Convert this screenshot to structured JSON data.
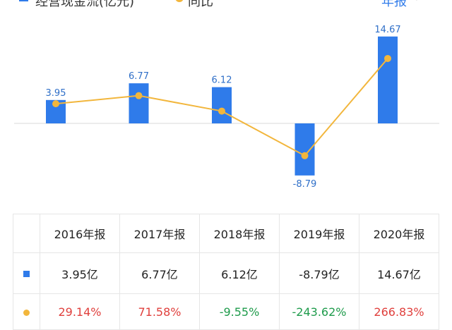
{
  "legend": {
    "bar_label": "经营现金流(亿元)",
    "line_label": "同比",
    "period": "年报",
    "chevron": "›"
  },
  "colors": {
    "bar": "#2f7bea",
    "line": "#f2b63c",
    "positive": "#e0403d",
    "negative": "#1e9b4b"
  },
  "chart_data": {
    "type": "bar",
    "categories": [
      "2016年报",
      "2017年报",
      "2018年报",
      "2019年报",
      "2020年报"
    ],
    "series": [
      {
        "name": "经营现金流(亿元)",
        "type": "bar",
        "values": [
          3.95,
          6.77,
          6.12,
          -8.79,
          14.67
        ],
        "labels": [
          "3.95",
          "6.77",
          "6.12",
          "-8.79",
          "14.67"
        ]
      },
      {
        "name": "同比",
        "type": "line",
        "values": [
          29.14,
          71.58,
          -9.55,
          -243.62,
          266.83
        ]
      }
    ]
  },
  "table": {
    "headers": [
      "2016年报",
      "2017年报",
      "2018年报",
      "2019年报",
      "2020年报"
    ],
    "flow_row": [
      "3.95亿",
      "6.77亿",
      "6.12亿",
      "-8.79亿",
      "14.67亿"
    ],
    "yoy_row": [
      "29.14%",
      "71.58%",
      "-9.55%",
      "-243.62%",
      "266.83%"
    ]
  }
}
